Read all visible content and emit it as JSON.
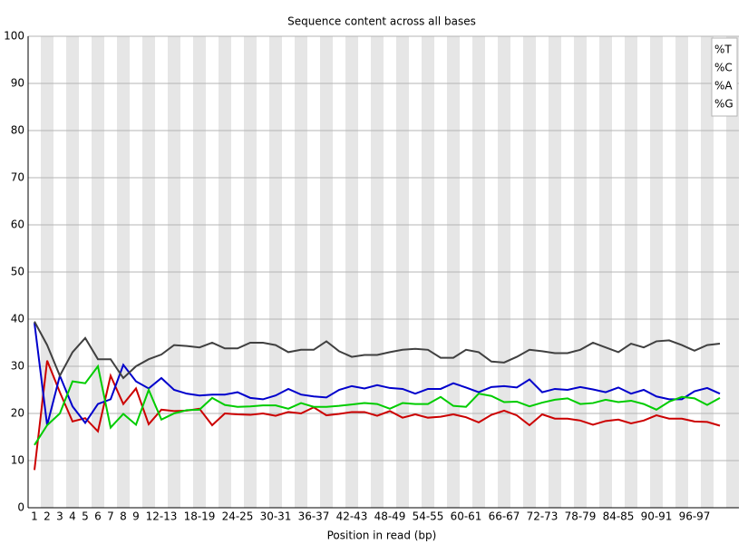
{
  "chart_data": {
    "type": "line",
    "title": "Sequence content across all bases",
    "x_label": "Position in read (bp)",
    "categories": [
      "1",
      "2",
      "3",
      "4",
      "5",
      "6",
      "7",
      "8",
      "9",
      null,
      "12-13",
      null,
      null,
      "18-19",
      null,
      null,
      "24-25",
      null,
      null,
      "30-31",
      null,
      null,
      "36-37",
      null,
      null,
      "42-43",
      null,
      null,
      "48-49",
      null,
      null,
      "54-55",
      null,
      null,
      "60-61",
      null,
      null,
      "66-67",
      null,
      null,
      "72-73",
      null,
      null,
      "78-79",
      null,
      null,
      "84-85",
      null,
      null,
      "90-91",
      null,
      null,
      "96-97",
      null,
      null
    ],
    "series": [
      {
        "name": "%T",
        "color": "#cc0000",
        "values": [
          8,
          31.2,
          24.5,
          18.3,
          19,
          16.2,
          28,
          22,
          25.3,
          17.7,
          20.8,
          20.5,
          20.6,
          21,
          17.5,
          20,
          19.8,
          19.7,
          20,
          19.5,
          20.3,
          20,
          21.3,
          19.6,
          19.9,
          20.3,
          20.3,
          19.5,
          20.5,
          19.1,
          19.8,
          19.1,
          19.3,
          19.8,
          19.2,
          18.1,
          19.7,
          20.6,
          19.6,
          17.5,
          19.8,
          18.9,
          18.9,
          18.5,
          17.6,
          18.4,
          18.7,
          17.9,
          18.5,
          19.6,
          18.9,
          18.9,
          18.3,
          18.2,
          17.4
        ]
      },
      {
        "name": "%C",
        "color": "#0000cc",
        "values": [
          39.2,
          17.5,
          28,
          21.5,
          18,
          22,
          23,
          30.3,
          26.8,
          25.3,
          27.5,
          25,
          24.2,
          23.8,
          24,
          24,
          24.5,
          23.3,
          23,
          23.8,
          25.2,
          24,
          23.6,
          23.4,
          25,
          25.8,
          25.3,
          26,
          25.4,
          25.2,
          24.2,
          25.2,
          25.2,
          26.4,
          25.5,
          24.5,
          25.6,
          25.8,
          25.5,
          27.2,
          24.5,
          25.2,
          25,
          25.6,
          25.1,
          24.5,
          25.5,
          24.2,
          25,
          23.6,
          23,
          23,
          24.7,
          25.4,
          24.2
        ]
      },
      {
        "name": "%A",
        "color": "#00cc00",
        "values": [
          13.3,
          17.5,
          20,
          26.8,
          26.4,
          30,
          17,
          19.9,
          17.6,
          25,
          18.7,
          20,
          20.7,
          20.8,
          23.3,
          21.8,
          21.4,
          21.5,
          21.7,
          21.7,
          21,
          22.2,
          21.4,
          21.4,
          21.6,
          21.9,
          22.2,
          22,
          21,
          22.2,
          22,
          22,
          23.5,
          21.6,
          21.4,
          24.2,
          23.7,
          22.4,
          22.5,
          21.5,
          22.3,
          22.9,
          23.2,
          22,
          22.2,
          22.9,
          22.4,
          22.7,
          22,
          20.8,
          22.5,
          23.5,
          23.2,
          21.8,
          23.3
        ]
      },
      {
        "name": "%G",
        "color": "#404040",
        "values": [
          39.5,
          34.5,
          28,
          33,
          36,
          31.5,
          31.5,
          27.5,
          30,
          31.5,
          32.5,
          34.5,
          34.3,
          34,
          35,
          33.8,
          33.8,
          35,
          35,
          34.5,
          33,
          33.5,
          33.5,
          35.3,
          33.2,
          32,
          32.4,
          32.4,
          33,
          33.5,
          33.7,
          33.5,
          31.8,
          31.8,
          33.5,
          33,
          31,
          30.8,
          32,
          33.5,
          33.2,
          32.8,
          32.8,
          33.5,
          35,
          34,
          33,
          34.8,
          34,
          35.3,
          35.5,
          34.5,
          33.3,
          34.5,
          34.8
        ]
      }
    ],
    "ylim": [
      0,
      100
    ],
    "yticks": [
      0,
      10,
      20,
      30,
      40,
      50,
      60,
      70,
      80,
      90,
      100
    ],
    "grid": true,
    "legend": "top-right"
  }
}
